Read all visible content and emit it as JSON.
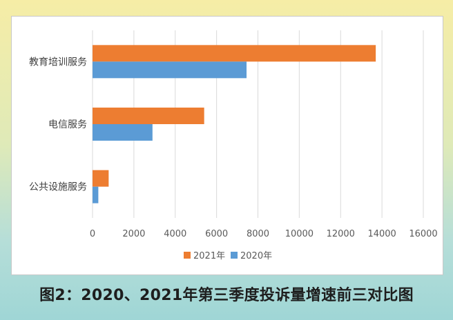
{
  "caption": "图2：2020、2021年第三季度投诉量增速前三对比图",
  "chart_data": {
    "type": "bar",
    "orientation": "horizontal",
    "categories": [
      "教育培训服务",
      "电信服务",
      "公共设施服务"
    ],
    "series": [
      {
        "name": "2021年",
        "color": "#ed7d31",
        "values": [
          13700,
          5400,
          780
        ]
      },
      {
        "name": "2020年",
        "color": "#5b9bd5",
        "values": [
          7450,
          2900,
          280
        ]
      }
    ],
    "xlim": [
      0,
      16000
    ],
    "xticks": [
      0,
      2000,
      4000,
      6000,
      8000,
      10000,
      12000,
      14000,
      16000
    ],
    "grid": true,
    "legend_position": "bottom"
  }
}
